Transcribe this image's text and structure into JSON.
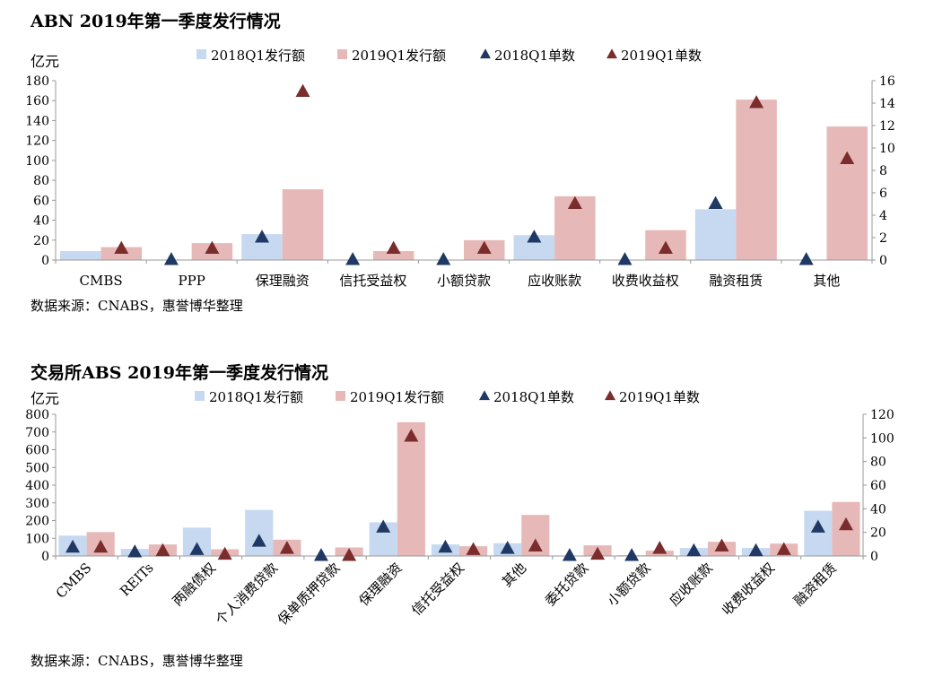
{
  "chart_data": [
    {
      "type": "bar",
      "title": "ABN 2019年第一季度发行情况",
      "unit_label": "亿元",
      "source": "数据来源：CNABS，惠誉博华整理",
      "categories": [
        "CMBS",
        "PPP",
        "保理融资",
        "信托受益权",
        "小额贷款",
        "应收账款",
        "收费收益权",
        "融资租赁",
        "其他"
      ],
      "ylim": [
        0,
        180
      ],
      "y_ticks": [
        0,
        20,
        40,
        60,
        80,
        100,
        120,
        140,
        160,
        180
      ],
      "y2lim": [
        0,
        16
      ],
      "y2_ticks": [
        0,
        2,
        4,
        6,
        8,
        10,
        12,
        14,
        16
      ],
      "legend": [
        "2018Q1发行额",
        "2019Q1发行额",
        "2018Q1单数",
        "2019Q1单数"
      ],
      "series": [
        {
          "name": "2018Q1发行额",
          "kind": "bar",
          "axis": "left",
          "color": "#c6d9f1",
          "values": [
            9,
            0,
            26,
            0,
            0,
            25,
            0,
            51,
            0
          ]
        },
        {
          "name": "2019Q1发行额",
          "kind": "bar",
          "axis": "left",
          "color": "#e6b9b8",
          "values": [
            13,
            17,
            71,
            9,
            20,
            64,
            30,
            161,
            134
          ]
        },
        {
          "name": "2018Q1单数",
          "kind": "marker",
          "axis": "right",
          "color": "#1f3864",
          "values": [
            null,
            0,
            2,
            0,
            0,
            2,
            0,
            5,
            0
          ]
        },
        {
          "name": "2019Q1单数",
          "kind": "marker",
          "axis": "right",
          "color": "#7b2c2c",
          "values": [
            1,
            1,
            15,
            1,
            1,
            5,
            1,
            14,
            9
          ]
        }
      ]
    },
    {
      "type": "bar",
      "title": "交易所ABS 2019年第一季度发行情况",
      "unit_label": "亿元",
      "source": "数据来源：CNABS，惠誉博华整理",
      "categories": [
        "CMBS",
        "REITs",
        "两融债权",
        "个人消费贷款",
        "保单质押贷款",
        "保理融资",
        "信托受益权",
        "其他",
        "委托贷款",
        "小额贷款",
        "应收账款",
        "收费收益权",
        "融资租赁"
      ],
      "ylim": [
        0,
        800
      ],
      "y_ticks": [
        0,
        100,
        200,
        300,
        400,
        500,
        600,
        700,
        800
      ],
      "y2lim": [
        0,
        120
      ],
      "y2_ticks": [
        0,
        20,
        40,
        60,
        80,
        100,
        120
      ],
      "legend": [
        "2018Q1发行额",
        "2019Q1发行额",
        "2018Q1单数",
        "2019Q1单数"
      ],
      "series": [
        {
          "name": "2018Q1发行额",
          "kind": "bar",
          "axis": "left",
          "color": "#c6d9f1",
          "values": [
            115,
            40,
            160,
            260,
            0,
            190,
            65,
            72,
            0,
            5,
            45,
            45,
            255
          ]
        },
        {
          "name": "2019Q1发行额",
          "kind": "bar",
          "axis": "left",
          "color": "#e6b9b8",
          "values": [
            135,
            65,
            38,
            92,
            48,
            755,
            55,
            232,
            60,
            30,
            80,
            70,
            305
          ]
        },
        {
          "name": "2018Q1单数",
          "kind": "marker",
          "axis": "right",
          "color": "#1f3864",
          "values": [
            7,
            3,
            5,
            12,
            0,
            24,
            7,
            6,
            0,
            0,
            4,
            4,
            24
          ]
        },
        {
          "name": "2019Q1单数",
          "kind": "marker",
          "axis": "right",
          "color": "#7b2c2c",
          "values": [
            7,
            4,
            1,
            6,
            0,
            101,
            5,
            8,
            1,
            6,
            8,
            5,
            26
          ]
        }
      ]
    }
  ]
}
